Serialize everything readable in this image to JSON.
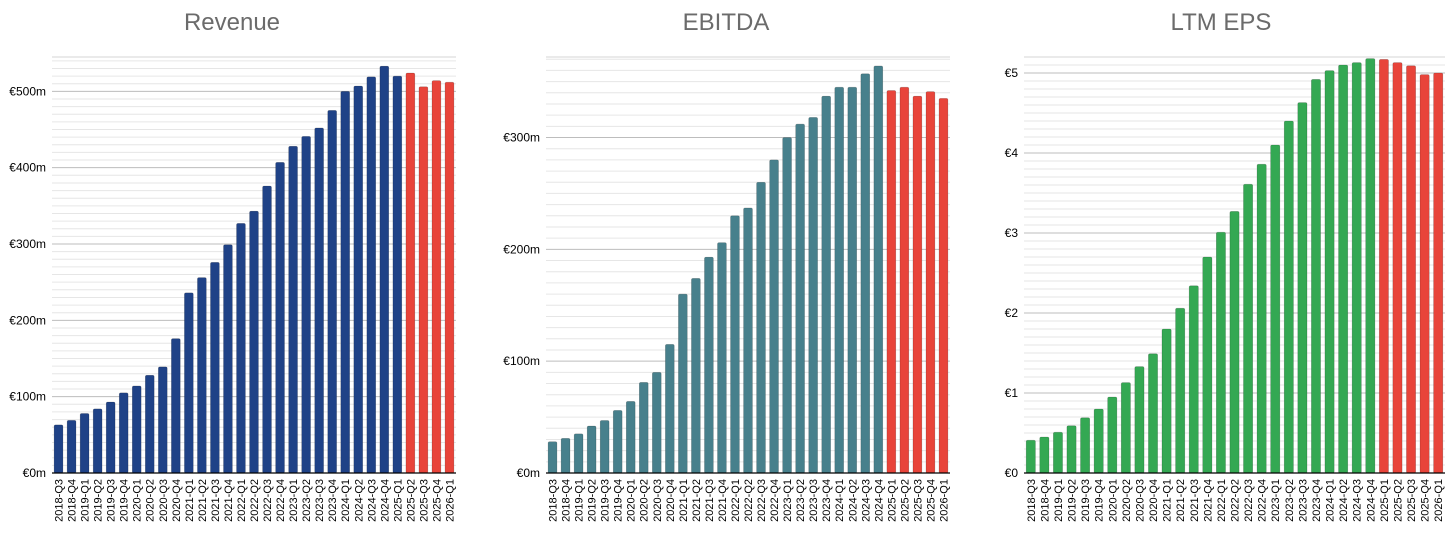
{
  "chart_data": [
    {
      "type": "bar",
      "title": "Revenue",
      "xlabel": "",
      "ylabel": "",
      "ylim": [
        0,
        545
      ],
      "yticks": [
        0,
        100,
        200,
        300,
        400,
        500
      ],
      "ytick_labels": [
        "€0m",
        "€100m",
        "€200m",
        "€300m",
        "€400m",
        "€500m"
      ],
      "minor_step": 10,
      "grid": true,
      "colors": {
        "actual": "#1f4287",
        "forecast": "#e8443a"
      },
      "forecast_start_index": 27,
      "categories": [
        "2018-Q3",
        "2018-Q4",
        "2019-Q1",
        "2019-Q2",
        "2019-Q3",
        "2019-Q4",
        "2020-Q1",
        "2020-Q2",
        "2020-Q3",
        "2020-Q4",
        "2021-Q1",
        "2021-Q2",
        "2021-Q3",
        "2021-Q4",
        "2022-Q1",
        "2022-Q2",
        "2022-Q3",
        "2022-Q4",
        "2023-Q1",
        "2023-Q2",
        "2023-Q3",
        "2023-Q4",
        "2024-Q1",
        "2024-Q2",
        "2024-Q3",
        "2024-Q4",
        "2025-Q1",
        "2025-Q2",
        "2025-Q3",
        "2025-Q4",
        "2026-Q1"
      ],
      "values": [
        63,
        69,
        78,
        84,
        93,
        105,
        114,
        128,
        139,
        176,
        236,
        256,
        276,
        299,
        327,
        343,
        376,
        407,
        428,
        441,
        452,
        475,
        500,
        507,
        519,
        533,
        520,
        524,
        506,
        514,
        512
      ]
    },
    {
      "type": "bar",
      "title": "EBITDA",
      "xlabel": "",
      "ylabel": "",
      "ylim": [
        0,
        372
      ],
      "yticks": [
        0,
        100,
        200,
        300
      ],
      "ytick_labels": [
        "€0m",
        "€100m",
        "€200m",
        "€300m"
      ],
      "minor_step": 10,
      "grid": true,
      "colors": {
        "actual": "#47808c",
        "forecast": "#e8443a"
      },
      "forecast_start_index": 26,
      "categories": [
        "2018-Q3",
        "2018-Q4",
        "2019-Q1",
        "2019-Q2",
        "2019-Q3",
        "2019-Q4",
        "2020-Q1",
        "2020-Q2",
        "2020-Q3",
        "2020-Q4",
        "2021-Q1",
        "2021-Q2",
        "2021-Q3",
        "2021-Q4",
        "2022-Q1",
        "2022-Q2",
        "2022-Q3",
        "2022-Q4",
        "2023-Q1",
        "2023-Q2",
        "2023-Q3",
        "2023-Q4",
        "2024-Q1",
        "2024-Q2",
        "2024-Q3",
        "2024-Q4",
        "2025-Q1",
        "2025-Q2",
        "2025-Q3",
        "2025-Q4",
        "2026-Q1"
      ],
      "values": [
        28,
        31,
        35,
        42,
        47,
        56,
        64,
        81,
        90,
        115,
        160,
        174,
        193,
        206,
        230,
        237,
        260,
        280,
        300,
        312,
        318,
        337,
        345,
        345,
        357,
        364,
        342,
        345,
        337,
        341,
        335
      ]
    },
    {
      "type": "bar",
      "title": "LTM EPS",
      "xlabel": "",
      "ylabel": "",
      "ylim": [
        0,
        5.2
      ],
      "yticks": [
        0,
        1,
        2,
        3,
        4,
        5
      ],
      "ytick_labels": [
        "€0",
        "€1",
        "€2",
        "€3",
        "€4",
        "€5"
      ],
      "minor_step": 0.1,
      "grid": true,
      "colors": {
        "actual": "#34a853",
        "forecast": "#e8443a"
      },
      "forecast_start_index": 26,
      "categories": [
        "2018-Q3",
        "2018-Q4",
        "2019-Q1",
        "2019-Q2",
        "2019-Q3",
        "2019-Q4",
        "2020-Q1",
        "2020-Q2",
        "2020-Q3",
        "2020-Q4",
        "2021-Q1",
        "2021-Q2",
        "2021-Q3",
        "2021-Q4",
        "2022-Q1",
        "2022-Q2",
        "2022-Q3",
        "2022-Q4",
        "2023-Q1",
        "2023-Q2",
        "2023-Q3",
        "2023-Q4",
        "2024-Q1",
        "2024-Q2",
        "2024-Q3",
        "2024-Q4",
        "2025-Q1",
        "2025-Q2",
        "2025-Q3",
        "2025-Q4",
        "2026-Q1"
      ],
      "values": [
        0.41,
        0.45,
        0.51,
        0.59,
        0.69,
        0.8,
        0.95,
        1.13,
        1.33,
        1.49,
        1.8,
        2.06,
        2.34,
        2.7,
        3.01,
        3.27,
        3.61,
        3.86,
        4.1,
        4.4,
        4.63,
        4.92,
        5.03,
        5.1,
        5.13,
        5.18,
        5.17,
        5.13,
        5.09,
        4.98,
        5.0
      ]
    }
  ]
}
